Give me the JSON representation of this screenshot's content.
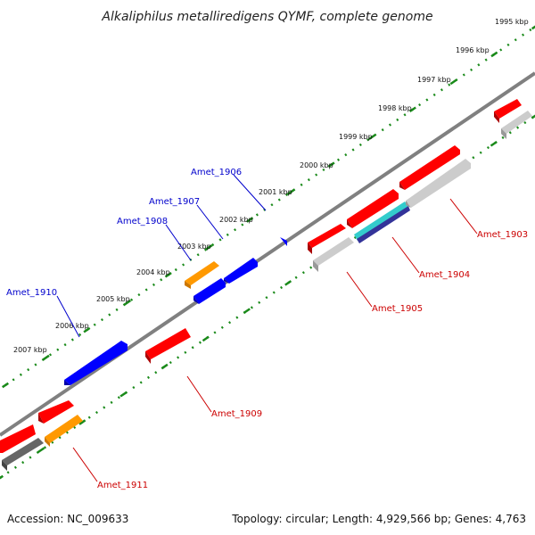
{
  "title": "Alkaliphilus metalliredigens QYMF, complete genome",
  "footer": {
    "accession": "Accession: NC_009633",
    "summary": "Topology: circular; Length: 4,929,566 bp; Genes: 4,763"
  },
  "colors": {
    "forward_label": "#0000cc",
    "reverse_label": "#cc0000",
    "backbone": "#808080",
    "ticks": "#1a8a1a",
    "gene_red": "#ff0000",
    "gene_blue": "#0000ff",
    "gene_orange": "#ff9900",
    "gene_grey": "#bbbbbb",
    "gene_dark_grey": "#666666",
    "gene_cyan": "#33cccc",
    "gene_navy": "#333399"
  },
  "scale_labels": [
    "1995 kbp",
    "1996 kbp",
    "1997 kbp",
    "1998 kbp",
    "1999 kbp",
    "2000 kbp",
    "2001 kbp",
    "2002 kbp",
    "2003 kbp",
    "2004 kbp",
    "2005 kbp",
    "2006 kbp",
    "2007 kbp"
  ],
  "gene_labels": {
    "forward": [
      "Amet_1906",
      "Amet_1907",
      "Amet_1908",
      "Amet_1910"
    ],
    "reverse": [
      "Amet_1903",
      "Amet_1904",
      "Amet_1905",
      "Amet_1909",
      "Amet_1911"
    ]
  }
}
